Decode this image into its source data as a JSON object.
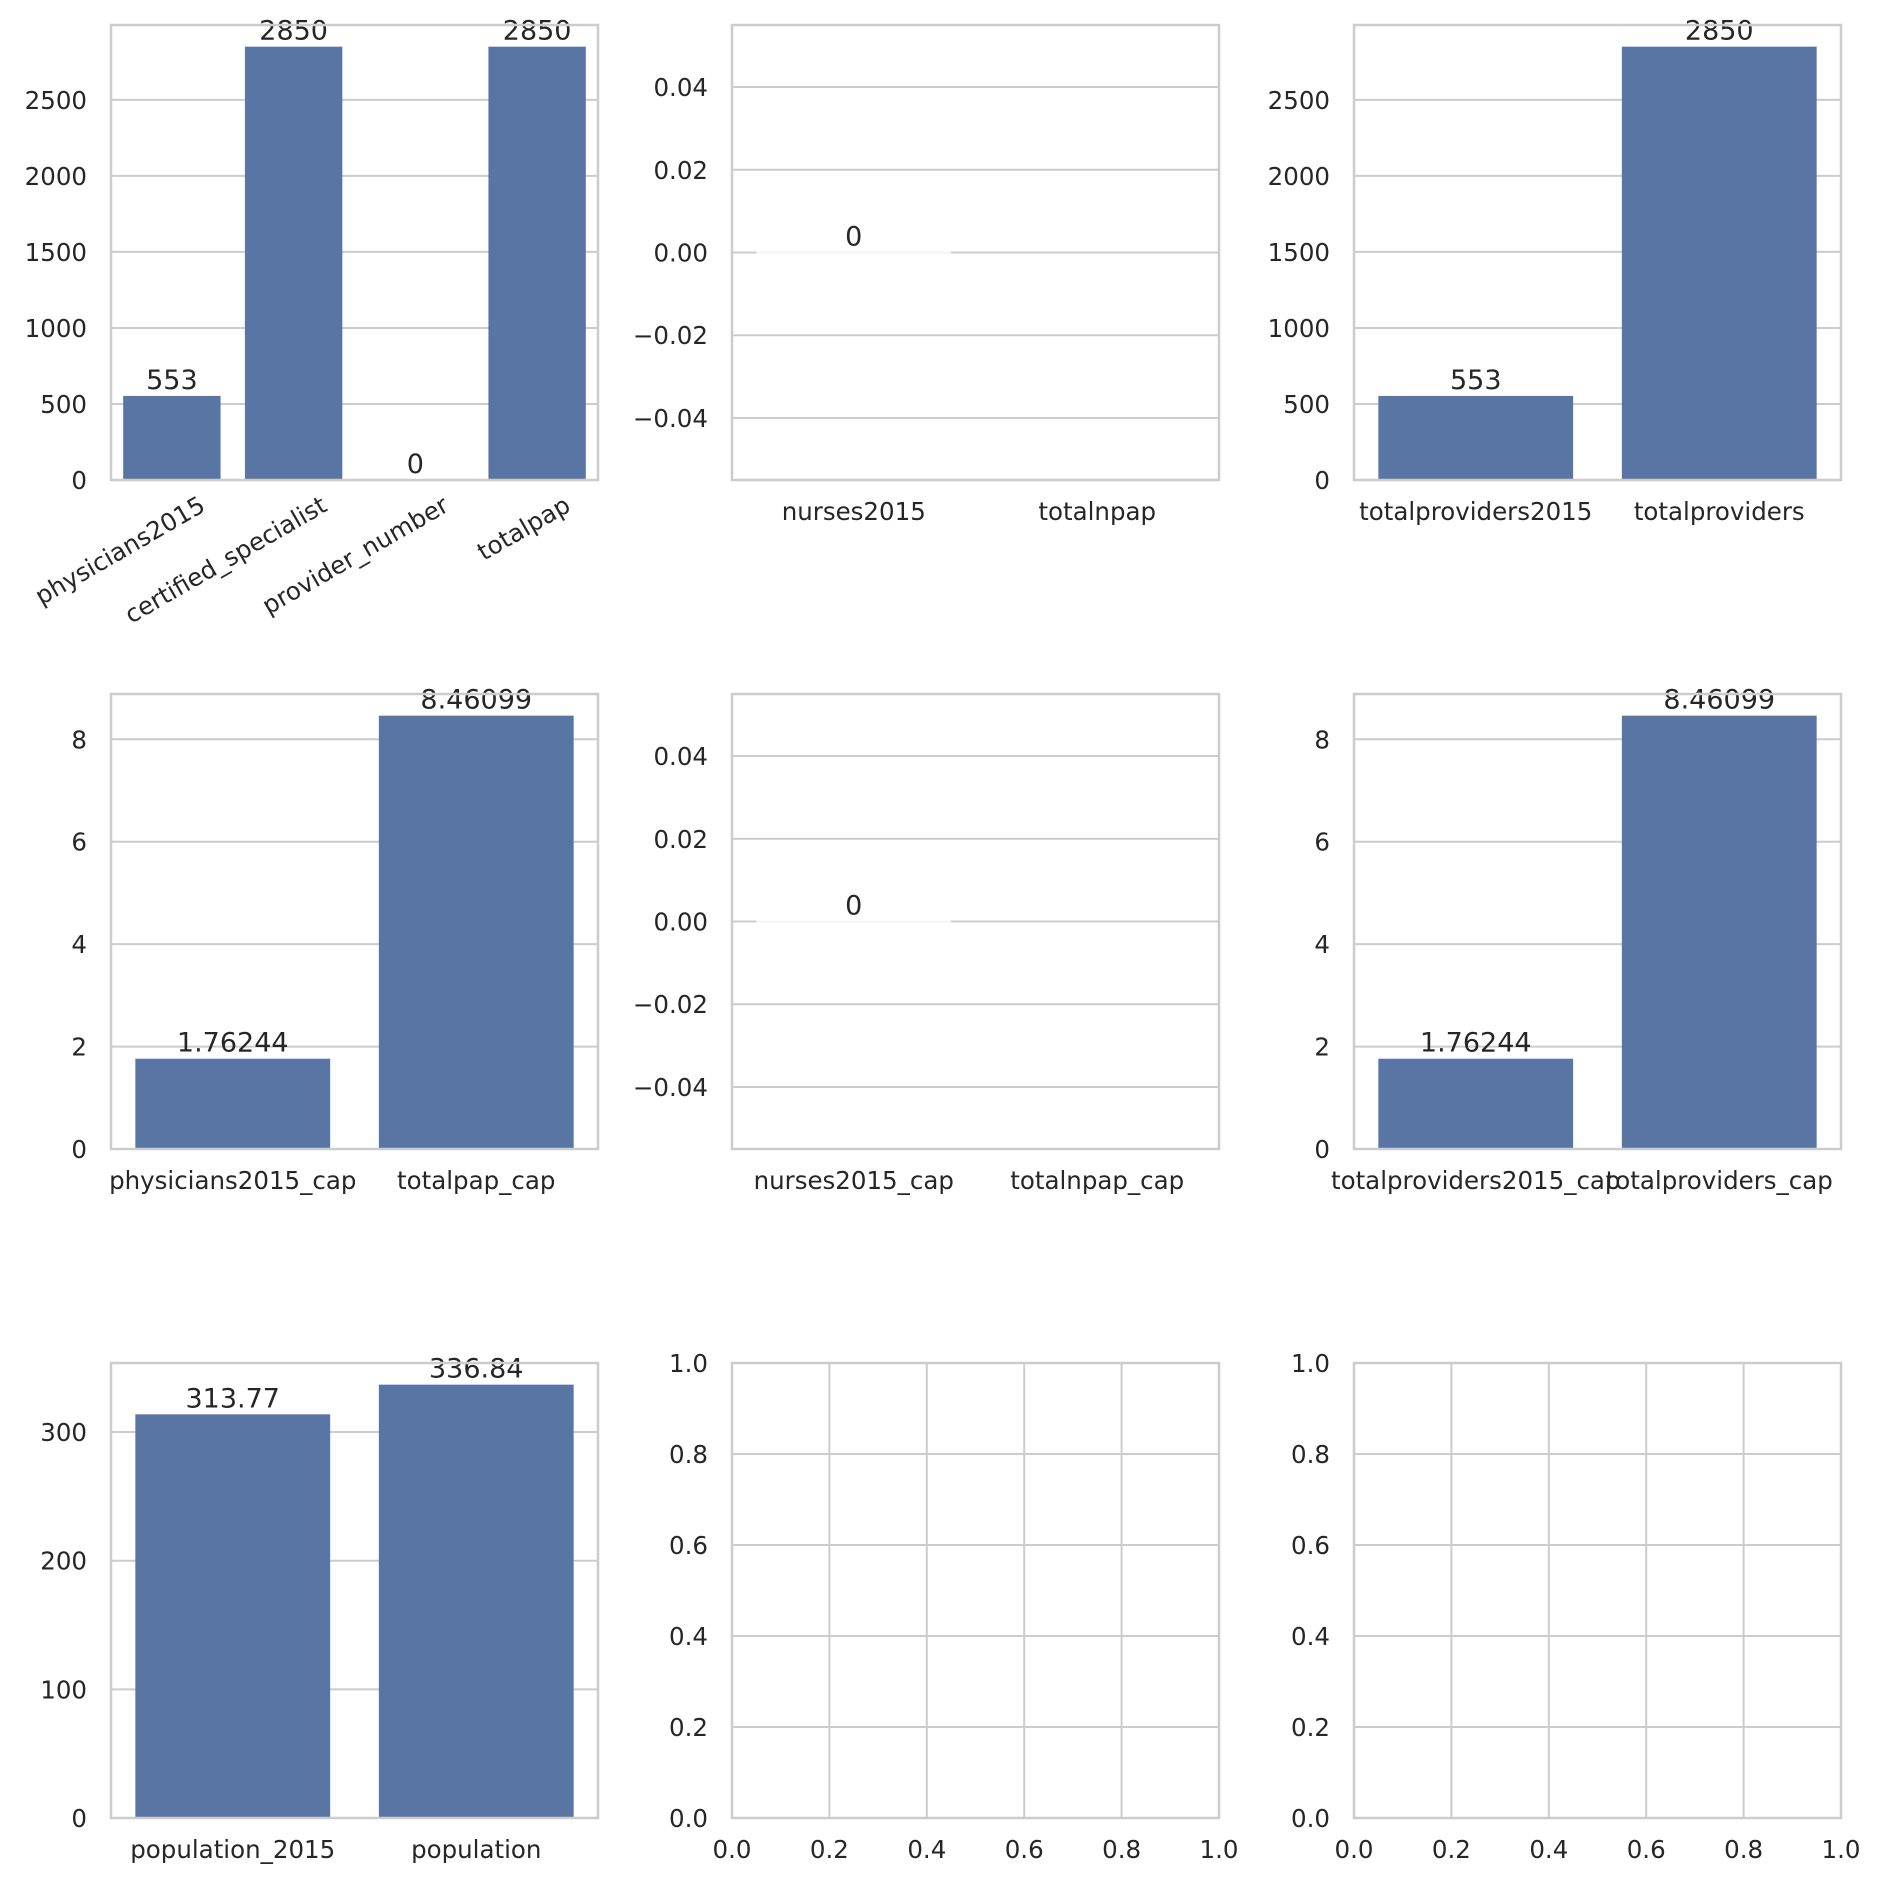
{
  "colors": {
    "bar": "#5975a4",
    "grid": "#cccccc",
    "spine": "#cccccc",
    "text": "#262626",
    "background": "#ffffff"
  },
  "chart_data": [
    {
      "type": "bar",
      "categories": [
        "physicians2015",
        "certified_specialist",
        "provider_number",
        "totalpap"
      ],
      "values": [
        553,
        2850,
        0,
        2850
      ],
      "data_labels": [
        "553",
        "2850",
        "0",
        "2850"
      ],
      "yticks": [
        "0",
        "500",
        "1000",
        "1500",
        "2000",
        "2500"
      ],
      "ylim": [
        0,
        2992.5
      ],
      "x_tick_rotation": 30,
      "grid": "y"
    },
    {
      "type": "bar",
      "categories": [
        "nurses2015",
        "totalnpap"
      ],
      "values": [
        0,
        null
      ],
      "data_labels": [
        "0",
        ""
      ],
      "yticks": [
        "−0.04",
        "−0.02",
        "0.00",
        "0.02",
        "0.04"
      ],
      "ylim": [
        -0.055,
        0.055
      ],
      "grid": "y"
    },
    {
      "type": "bar",
      "categories": [
        "totalproviders2015",
        "totalproviders"
      ],
      "values": [
        553,
        2850
      ],
      "data_labels": [
        "553",
        "2850"
      ],
      "yticks": [
        "0",
        "500",
        "1000",
        "1500",
        "2000",
        "2500"
      ],
      "ylim": [
        0,
        2992.5
      ],
      "grid": "y"
    },
    {
      "type": "bar",
      "categories": [
        "physicians2015_cap",
        "totalpap_cap"
      ],
      "values": [
        1.76244,
        8.46099
      ],
      "data_labels": [
        "1.76244",
        "8.46099"
      ],
      "yticks": [
        "0",
        "2",
        "4",
        "6",
        "8"
      ],
      "ylim": [
        0,
        8.884
      ],
      "grid": "y"
    },
    {
      "type": "bar",
      "categories": [
        "nurses2015_cap",
        "totalnpap_cap"
      ],
      "values": [
        0,
        null
      ],
      "data_labels": [
        "0",
        ""
      ],
      "yticks": [
        "−0.04",
        "−0.02",
        "0.00",
        "0.02",
        "0.04"
      ],
      "ylim": [
        -0.055,
        0.055
      ],
      "grid": "y"
    },
    {
      "type": "bar",
      "categories": [
        "totalproviders2015_cap",
        "totalproviders_cap"
      ],
      "values": [
        1.76244,
        8.46099
      ],
      "data_labels": [
        "1.76244",
        "8.46099"
      ],
      "yticks": [
        "0",
        "2",
        "4",
        "6",
        "8"
      ],
      "ylim": [
        0,
        8.884
      ],
      "grid": "y"
    },
    {
      "type": "bar",
      "categories": [
        "population_2015",
        "population"
      ],
      "values": [
        313.77,
        336.84
      ],
      "data_labels": [
        "313.77",
        "336.84"
      ],
      "yticks": [
        "0",
        "100",
        "200",
        "300"
      ],
      "ylim": [
        0,
        353.68
      ],
      "grid": "y"
    },
    {
      "type": "empty",
      "xticks": [
        "0.0",
        "0.2",
        "0.4",
        "0.6",
        "0.8",
        "1.0"
      ],
      "yticks": [
        "0.0",
        "0.2",
        "0.4",
        "0.6",
        "0.8",
        "1.0"
      ],
      "xlim": [
        0,
        1
      ],
      "ylim": [
        0,
        1
      ],
      "grid": "both"
    },
    {
      "type": "empty",
      "xticks": [
        "0.0",
        "0.2",
        "0.4",
        "0.6",
        "0.8",
        "1.0"
      ],
      "yticks": [
        "0.0",
        "0.2",
        "0.4",
        "0.6",
        "0.8",
        "1.0"
      ],
      "xlim": [
        0,
        1
      ],
      "ylim": [
        0,
        1
      ],
      "grid": "both"
    }
  ]
}
